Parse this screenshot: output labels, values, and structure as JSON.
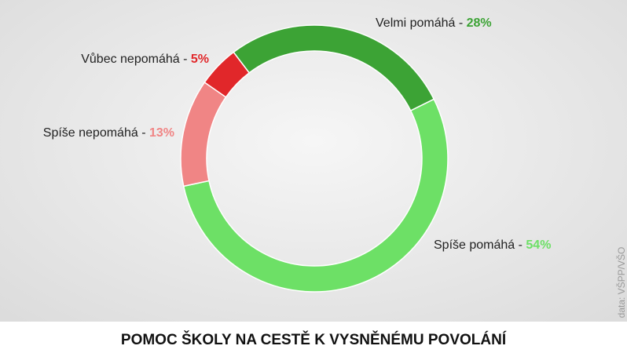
{
  "chart_data": {
    "type": "donut",
    "title": "POMOC ŠKOLY NA CESTĚ K VYSNĚNÉMU POVOLÁNÍ",
    "source": "data: VŠPP/VŠO",
    "separator": " - ",
    "categories": [
      "Velmi pomáhá",
      "Spíše pomáhá",
      "Spíše nepomáhá",
      "Vůbec nepomáhá"
    ],
    "values": [
      28,
      54,
      13,
      5
    ],
    "value_labels": [
      "28%",
      "54%",
      "13%",
      "5%"
    ],
    "colors": [
      "#3ca335",
      "#6de066",
      "#f08585",
      "#e1272a"
    ]
  }
}
